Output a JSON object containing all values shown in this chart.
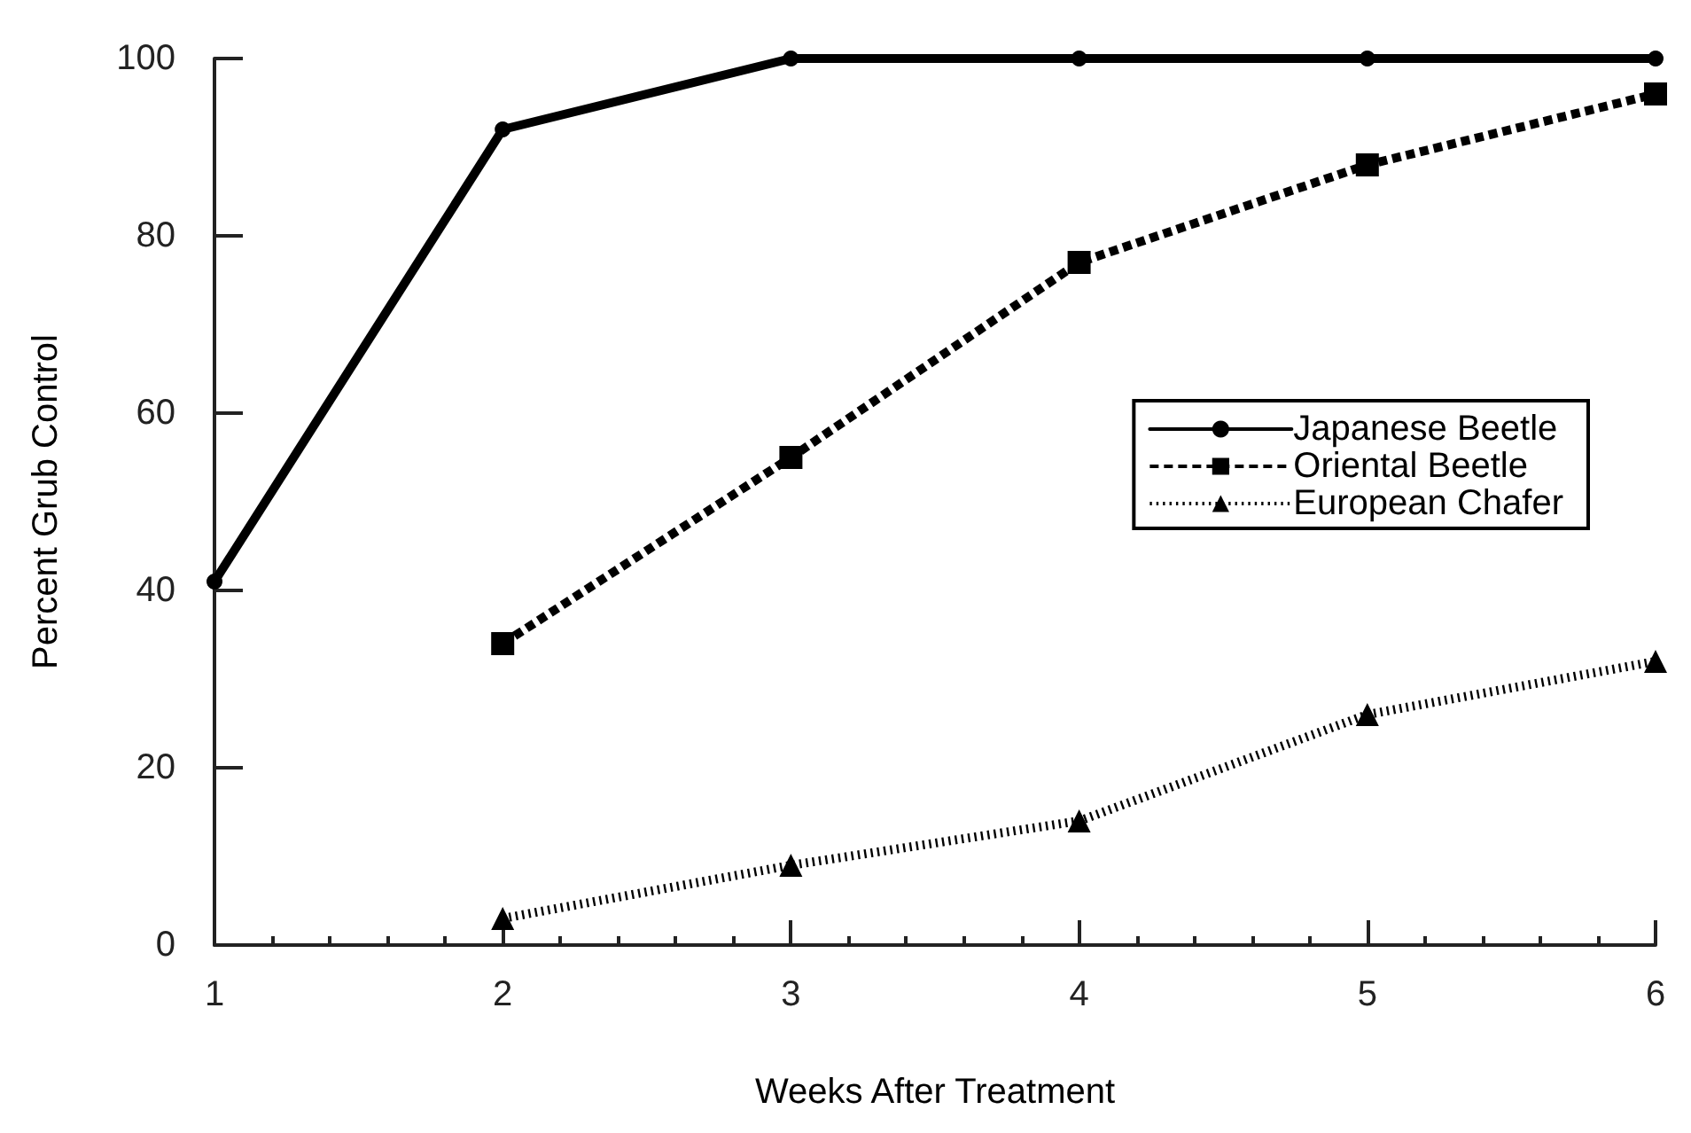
{
  "chart_data": {
    "type": "line",
    "xlabel": "Weeks After Treatment",
    "ylabel": "Percent Grub Control",
    "x": [
      1,
      2,
      3,
      4,
      5,
      6
    ],
    "series": [
      {
        "name": "Japanese Beetle",
        "color": "#000000",
        "marker": "circle",
        "line_style": "solid",
        "values": [
          41,
          92,
          100,
          100,
          100,
          100
        ]
      },
      {
        "name": "Oriental Beetle",
        "color": "#000000",
        "marker": "square",
        "line_style": "dashed",
        "values": [
          null,
          34,
          55,
          77,
          88,
          96
        ]
      },
      {
        "name": "European Chafer",
        "color": "#000000",
        "marker": "triangle",
        "line_style": "dotted",
        "values": [
          null,
          3,
          9,
          14,
          26,
          32
        ]
      }
    ],
    "xlim": [
      1,
      6
    ],
    "xticks": [
      1,
      2,
      3,
      4,
      5,
      6
    ],
    "ylim": [
      0,
      100
    ],
    "yticks": [
      0,
      20,
      40,
      60,
      80,
      100
    ],
    "grid": false,
    "legend": "right"
  }
}
